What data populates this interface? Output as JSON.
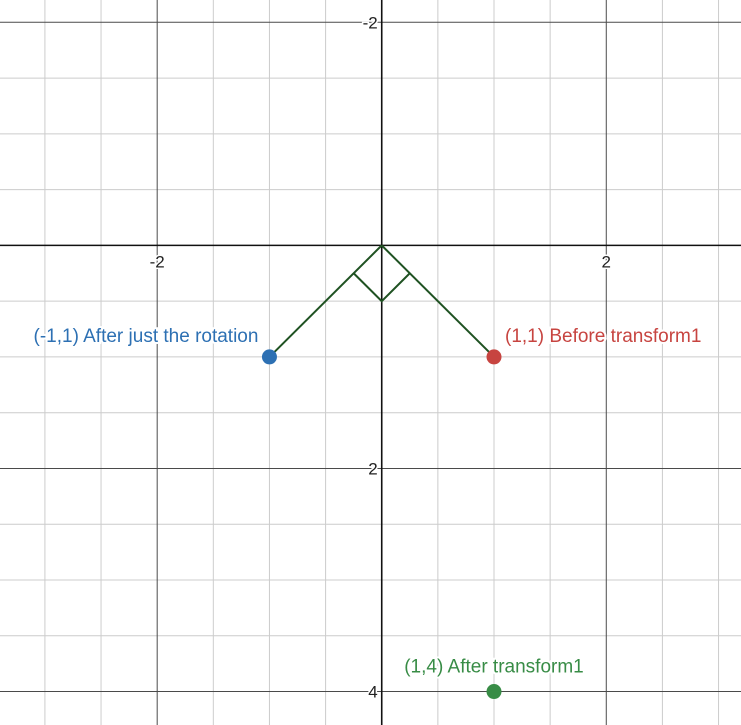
{
  "chart_data": {
    "type": "scatter",
    "title": "",
    "xlabel": "",
    "ylabel": "",
    "xlim": [
      -3.4,
      3.2
    ],
    "ylim": [
      -2.2,
      4.3
    ],
    "y_axis_inverted": true,
    "grid": true,
    "minor_grid_step": 0.5,
    "major_grid_step": 2,
    "x_ticks": [
      {
        "value": -2,
        "label": "-2"
      },
      {
        "value": 2,
        "label": "2"
      }
    ],
    "y_ticks": [
      {
        "value": -2,
        "label": "-2"
      },
      {
        "value": 2,
        "label": "2"
      },
      {
        "value": 4,
        "label": "4"
      }
    ],
    "points": [
      {
        "x": -1,
        "y": 1,
        "label": "(-1,1) After just the rotation",
        "color": "#2d70b3",
        "label_position": "left"
      },
      {
        "x": 1,
        "y": 1,
        "label": "(1,1) Before transform1",
        "color": "#c74440",
        "label_position": "right"
      },
      {
        "x": 1,
        "y": 4,
        "label": "(1,4) After transform1",
        "color": "#388c46",
        "label_position": "above"
      }
    ],
    "segments": [
      {
        "from": [
          0,
          0
        ],
        "to": [
          -1,
          1
        ],
        "color": "#1f5222"
      },
      {
        "from": [
          0,
          0
        ],
        "to": [
          1,
          1
        ],
        "color": "#1f5222"
      }
    ],
    "right_angle_marker": {
      "vertex": [
        0,
        0
      ],
      "size": 0.25,
      "color": "#1f5222"
    }
  }
}
